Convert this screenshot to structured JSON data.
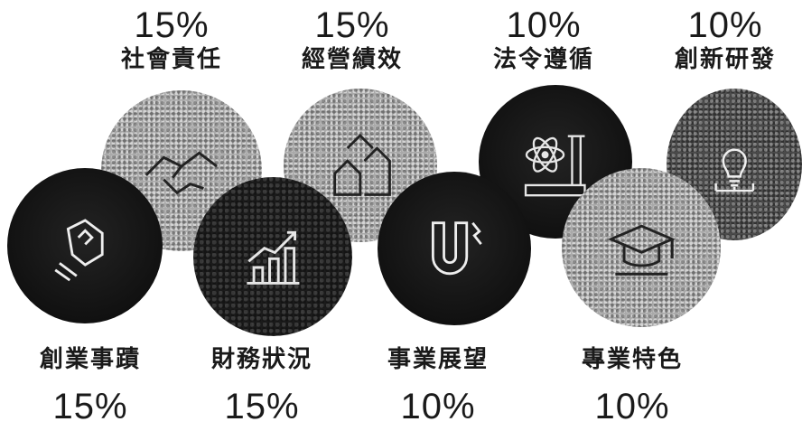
{
  "items": [
    {
      "name": "社會責任",
      "percent": "15%",
      "icon": "handshake-icon"
    },
    {
      "name": "經營績效",
      "percent": "15%",
      "icon": "growth-houses-icon"
    },
    {
      "name": "法令遵循",
      "percent": "10%",
      "icon": "atom-scroll-icon"
    },
    {
      "name": "創新研發",
      "percent": "10%",
      "icon": "lightbulb-icon"
    },
    {
      "name": "創業事蹟",
      "percent": "15%",
      "icon": "fist-icon"
    },
    {
      "name": "財務狀況",
      "percent": "15%",
      "icon": "bar-chart-icon"
    },
    {
      "name": "事業展望",
      "percent": "10%",
      "icon": "magnet-icon"
    },
    {
      "name": "專業特色",
      "percent": "10%",
      "icon": "graduation-cap-icon"
    }
  ]
}
